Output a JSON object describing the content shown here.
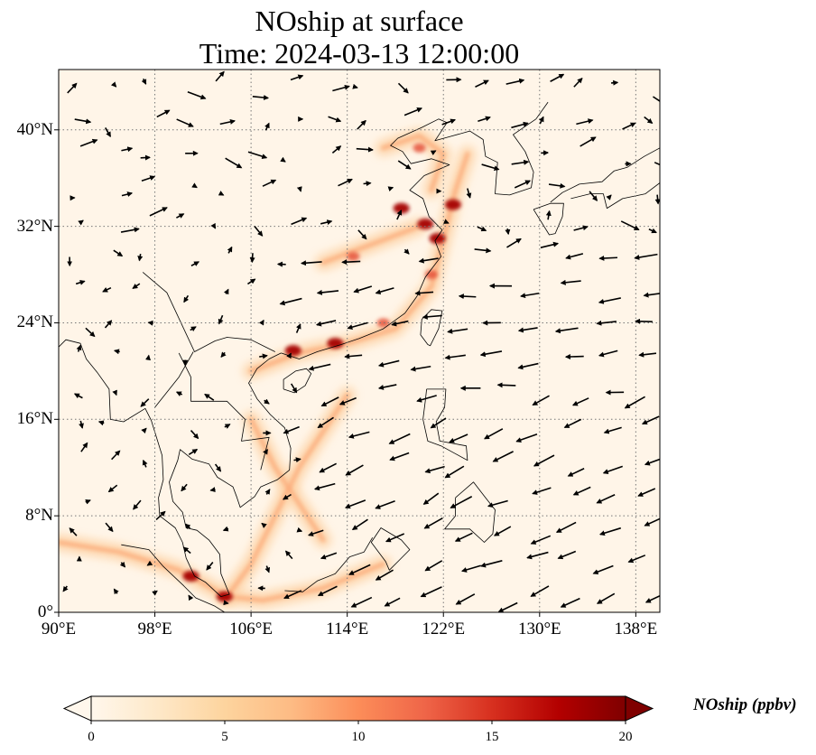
{
  "title": {
    "line1": "NOship at surface",
    "line2": "Time: 2024-03-13 12:00:00"
  },
  "map": {
    "lon_range": [
      90,
      140
    ],
    "lat_range": [
      0,
      45
    ],
    "x_ticks": [
      "90°E",
      "98°E",
      "106°E",
      "114°E",
      "122°E",
      "130°E",
      "138°E"
    ],
    "y_ticks": [
      "0°",
      "8°N",
      "16°N",
      "24°N",
      "32°N",
      "40°N"
    ],
    "x_tick_values": [
      90,
      98,
      106,
      114,
      122,
      130,
      138
    ],
    "y_tick_values": [
      0,
      8,
      16,
      24,
      32,
      40
    ],
    "gridlines": "dotted",
    "field": "NOship concentration (ppbv)",
    "hotspots_lonlat": [
      [
        121.5,
        31.0
      ],
      [
        120.5,
        32.2
      ],
      [
        118.5,
        33.5
      ],
      [
        122.8,
        33.8
      ],
      [
        113.0,
        22.3
      ],
      [
        109.5,
        21.7
      ],
      [
        103.8,
        1.3
      ],
      [
        101.0,
        3.0
      ],
      [
        120.0,
        38.5
      ],
      [
        114.5,
        29.5
      ],
      [
        117.0,
        24.0
      ],
      [
        121.0,
        28.0
      ]
    ]
  },
  "colorbar": {
    "label": "NOship (ppbv)",
    "ticks": [
      "0",
      "5",
      "10",
      "15",
      "20"
    ],
    "tick_values": [
      0,
      5,
      10,
      15,
      20
    ],
    "range": [
      0,
      20
    ],
    "extend": "both",
    "colormap": "OrRd",
    "colors": [
      "#fff7ec",
      "#fee8c8",
      "#fdd49e",
      "#fdbb84",
      "#fc8d59",
      "#ef6548",
      "#d7301f",
      "#b30000",
      "#7f0000"
    ]
  }
}
